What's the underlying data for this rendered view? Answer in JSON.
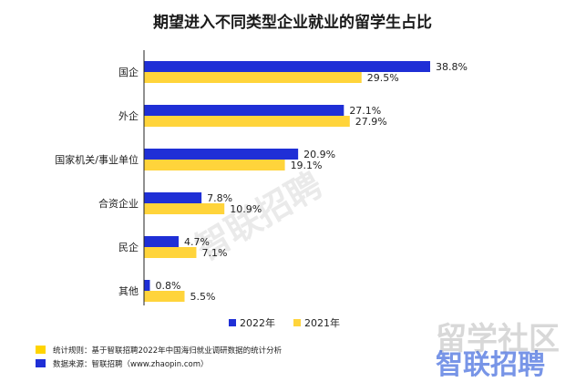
{
  "colors": {
    "series_2022": "#1f2fd6",
    "series_2021": "#ffd43b",
    "axis": "#222222",
    "footnote_yellow": "#ffd400",
    "footnote_blue": "#1f2fd6"
  },
  "chart_data": {
    "type": "bar",
    "orientation": "horizontal",
    "title": "期望进入不同类型企业就业的留学生占比",
    "categories": [
      "国企",
      "外企",
      "国家机关/事业单位",
      "合资企业",
      "民企",
      "其他"
    ],
    "series": [
      {
        "name": "2022年",
        "values": [
          38.8,
          27.1,
          20.9,
          7.8,
          4.7,
          0.8
        ],
        "labels": [
          "38.8%",
          "27.1%",
          "20.9%",
          "7.8%",
          "4.7%",
          "0.8%"
        ]
      },
      {
        "name": "2021年",
        "values": [
          29.5,
          27.9,
          19.1,
          10.9,
          7.1,
          5.5
        ],
        "labels": [
          "29.5%",
          "27.9%",
          "19.1%",
          "10.9%",
          "7.1%",
          "5.5%"
        ]
      }
    ],
    "value_unit": "%",
    "xlim": [
      0,
      40
    ],
    "grid": false,
    "legend_position": "bottom"
  },
  "footnotes": [
    {
      "text": "统计规则：基于智联招聘2022年中国海归就业调研数据的统计分析"
    },
    {
      "text": "数据来源：智联招聘（www.zhaopin.com）"
    }
  ],
  "watermarks": [
    "智联招聘",
    "留学社区",
    "智联招聘"
  ]
}
